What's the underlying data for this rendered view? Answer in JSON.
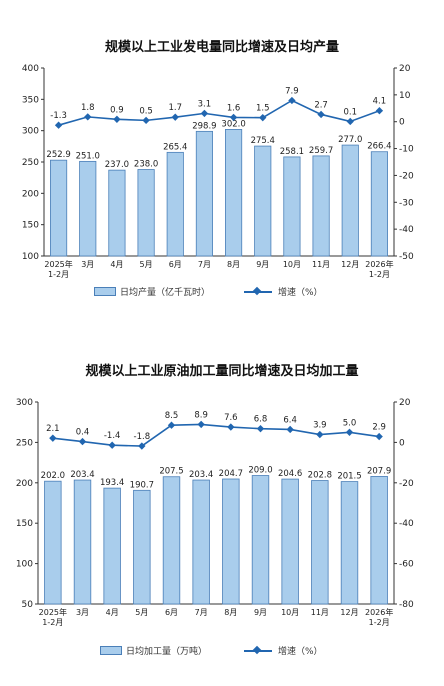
{
  "chart_data": [
    {
      "type": "bar+line",
      "title": "规模以上工业发电量同比增速及日均产量",
      "categories": [
        "2025年\n1-2月",
        "3月",
        "4月",
        "5月",
        "6月",
        "7月",
        "8月",
        "9月",
        "10月",
        "11月",
        "12月",
        "2026年\n1-2月"
      ],
      "series": [
        {
          "name": "日均产量（亿千瓦时）",
          "type": "bar",
          "axis": "left",
          "values": [
            252.9,
            251.0,
            237.0,
            238.0,
            265.4,
            298.9,
            302.0,
            275.4,
            258.1,
            259.7,
            277.0,
            266.4
          ],
          "labels": [
            "252.9",
            "251.0",
            "237.0",
            "238.0",
            "265.4",
            "298.9",
            "302.0",
            "275.4",
            "258.1",
            "259.7",
            "277.0",
            "266.4"
          ]
        },
        {
          "name": "增速（%）",
          "type": "line",
          "axis": "right",
          "values": [
            -1.3,
            1.8,
            0.9,
            0.5,
            1.7,
            3.1,
            1.6,
            1.5,
            7.9,
            2.7,
            0.1,
            4.1
          ],
          "labels": [
            "-1.3",
            "1.8",
            "0.9",
            "0.5",
            "1.7",
            "3.1",
            "1.6",
            "1.5",
            "7.9",
            "2.7",
            "0.1",
            "4.1"
          ]
        }
      ],
      "left_axis": {
        "min": 100,
        "max": 400,
        "ticks": [
          100,
          150,
          200,
          250,
          300,
          350,
          400
        ]
      },
      "right_axis": {
        "min": -50,
        "max": 20,
        "ticks": [
          -50,
          -40,
          -30,
          -20,
          -10,
          0,
          10,
          20
        ]
      },
      "legend": [
        "日均产量（亿千瓦时）",
        "增速（%）"
      ]
    },
    {
      "type": "bar+line",
      "title": "规模以上工业原油加工量同比增速及日均加工量",
      "categories": [
        "2025年\n1-2月",
        "3月",
        "4月",
        "5月",
        "6月",
        "7月",
        "8月",
        "9月",
        "10月",
        "11月",
        "12月",
        "2026年\n1-2月"
      ],
      "series": [
        {
          "name": "日均加工量（万吨）",
          "type": "bar",
          "axis": "left",
          "values": [
            202.0,
            203.4,
            193.4,
            190.7,
            207.5,
            203.4,
            204.7,
            209.0,
            204.6,
            202.8,
            201.5,
            207.9
          ],
          "labels": [
            "202.0",
            "203.4",
            "193.4",
            "190.7",
            "207.5",
            "203.4",
            "204.7",
            "209.0",
            "204.6",
            "202.8",
            "201.5",
            "207.9"
          ]
        },
        {
          "name": "增速（%）",
          "type": "line",
          "axis": "right",
          "values": [
            2.1,
            0.4,
            -1.4,
            -1.8,
            8.5,
            8.9,
            7.6,
            6.8,
            6.4,
            3.9,
            5.0,
            2.9
          ],
          "labels": [
            "2.1",
            "0.4",
            "-1.4",
            "-1.8",
            "8.5",
            "8.9",
            "7.6",
            "6.8",
            "6.4",
            "3.9",
            "5.0",
            "2.9"
          ]
        }
      ],
      "left_axis": {
        "min": 50,
        "max": 300,
        "ticks": [
          50,
          100,
          150,
          200,
          250,
          300
        ]
      },
      "right_axis": {
        "min": -80,
        "max": 20,
        "ticks": [
          -80,
          -60,
          -40,
          -20,
          0,
          20
        ]
      },
      "legend": [
        "日均加工量（万吨）",
        "增速（%）"
      ]
    }
  ],
  "colors": {
    "bar_fill": "#a9cdec",
    "bar_stroke": "#4a7fb8",
    "line": "#2166b0",
    "axis": "#333333"
  }
}
